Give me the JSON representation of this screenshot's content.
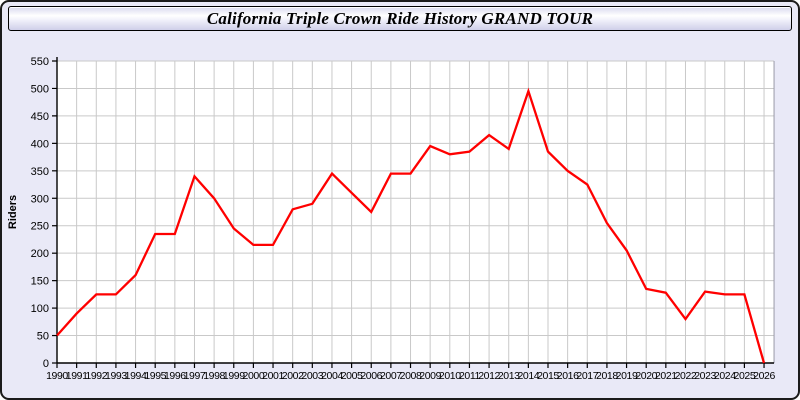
{
  "window": {
    "title": "California Triple Crown Ride History GRAND TOUR"
  },
  "chart_data": {
    "type": "line",
    "title": "California Triple Crown Ride History GRAND TOUR",
    "xlabel": "",
    "ylabel": "Riders",
    "x": [
      1990,
      1991,
      1992,
      1993,
      1994,
      1995,
      1996,
      1997,
      1998,
      1999,
      2000,
      2001,
      2002,
      2003,
      2004,
      2005,
      2006,
      2007,
      2008,
      2009,
      2010,
      2011,
      2012,
      2013,
      2014,
      2015,
      2016,
      2017,
      2018,
      2019,
      2020,
      2021,
      2022,
      2023,
      2024,
      2025,
      2026
    ],
    "values": [
      50,
      90,
      125,
      125,
      160,
      235,
      235,
      340,
      300,
      245,
      215,
      215,
      280,
      290,
      345,
      310,
      275,
      345,
      345,
      395,
      380,
      385,
      415,
      390,
      495,
      385,
      350,
      325,
      255,
      205,
      135,
      128,
      80,
      130,
      125,
      125,
      0
    ],
    "ylim": [
      0,
      550
    ],
    "ytick_step": 50,
    "grid": true,
    "legend": "none",
    "line_color": "#ff0000",
    "axis_color": "#000000",
    "grid_color": "#c9c9c9",
    "plot_background": "#ffffff",
    "page_background": "#e9e9f7",
    "tick_label_color": "#000000"
  }
}
